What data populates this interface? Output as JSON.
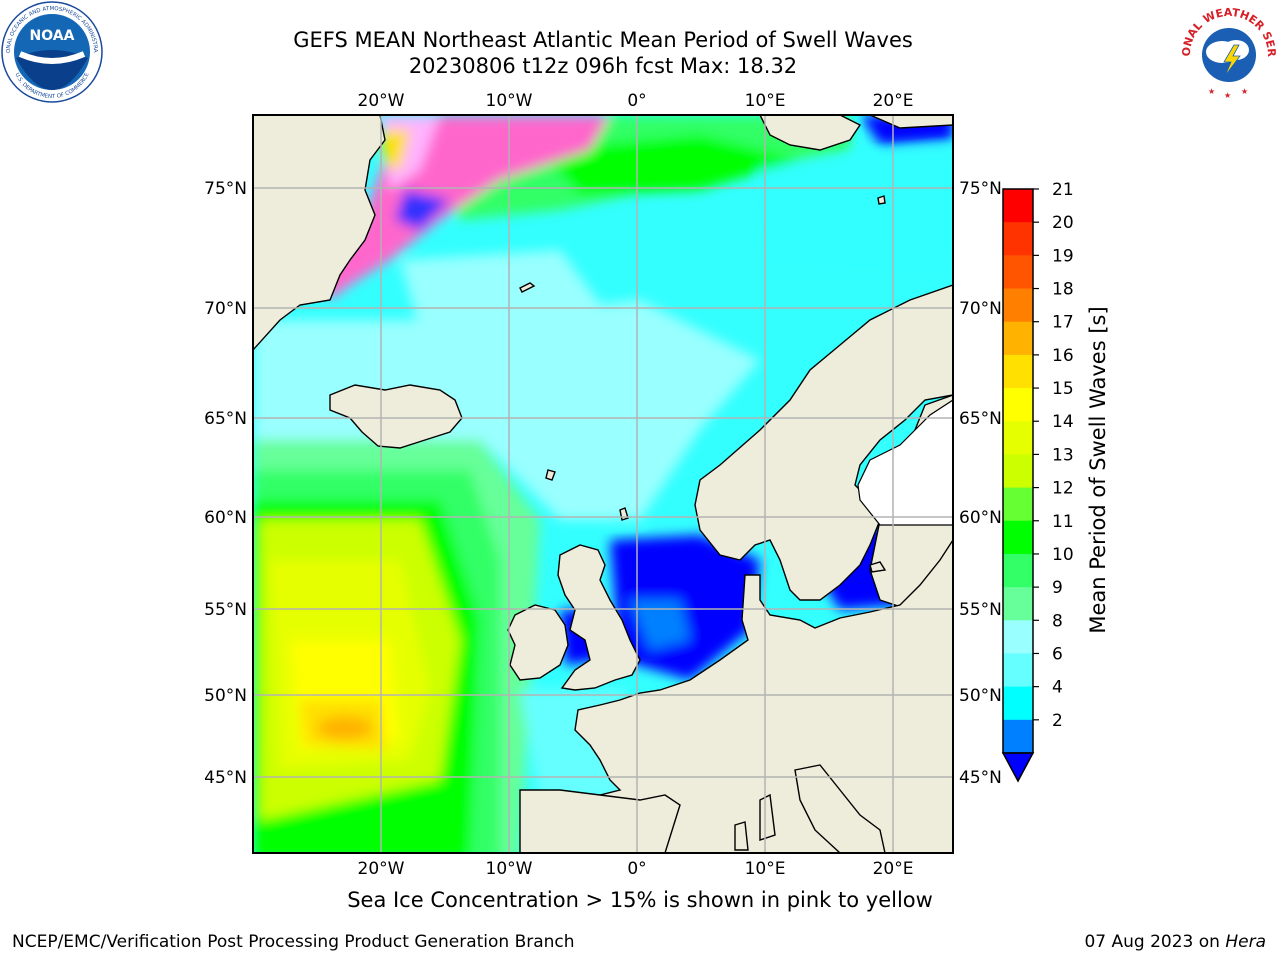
{
  "title": {
    "line1": "GEFS MEAN Northeast Atlantic Mean Period of Swell Waves",
    "line2": "20230806 t12z 096h fcst   Max: 18.32"
  },
  "map": {
    "lon_ticks_top": [
      "20°W",
      "10°W",
      "0°",
      "10°E",
      "20°E"
    ],
    "lon_ticks_bottom": [
      "20°W",
      "10°W",
      "0°",
      "10°E",
      "20°E"
    ],
    "lat_ticks_left": [
      "75°N",
      "70°N",
      "65°N",
      "60°N",
      "55°N",
      "50°N",
      "45°N"
    ],
    "lat_ticks_right": [
      "75°N",
      "70°N",
      "65°N",
      "60°N",
      "55°N",
      "50°N",
      "45°N"
    ],
    "land_color": "#eeecdb",
    "grid_color": "#b3b3b3"
  },
  "colorbar": {
    "label": "Mean Period of Swell Waves [s]",
    "ticks": [
      "21",
      "20",
      "19",
      "18",
      "17",
      "16",
      "15",
      "14",
      "13",
      "12",
      "11",
      "10",
      "9",
      "8",
      "6",
      "4",
      "2"
    ],
    "colors_top_to_bottom": [
      "#ff0000",
      "#ff3300",
      "#ff5500",
      "#ff8000",
      "#ffb300",
      "#ffe000",
      "#ffff00",
      "#e6ff00",
      "#ccff00",
      "#66ff33",
      "#00ff00",
      "#33ff66",
      "#66ff99",
      "#99ffff",
      "#66ffff",
      "#00ffff",
      "#0080ff"
    ],
    "extend_color": "#0000ff"
  },
  "note": "Sea Ice Concentration > 15% is shown in pink to yellow",
  "footer": {
    "left": "NCEP/EMC/Verification Post Processing Product Generation Branch",
    "right_date": "07 Aug 2023 on ",
    "right_host": "Hera"
  },
  "logos": {
    "left": "noaa-logo",
    "right": "nws-logo"
  }
}
